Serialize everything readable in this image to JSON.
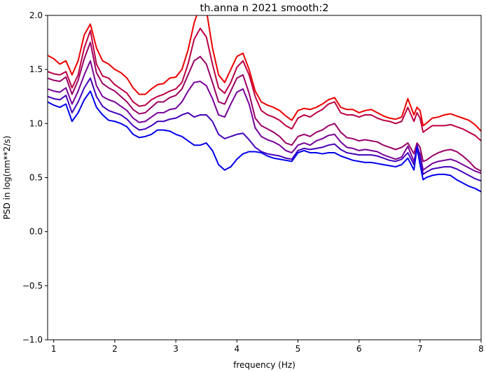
{
  "chart_data": {
    "type": "line",
    "title": "th.anna n 2021 smooth:2",
    "xlabel": "frequency (Hz)",
    "ylabel": "PSD in log(nm**2/s)",
    "xlim": [
      0.9,
      8.0
    ],
    "ylim": [
      -1.0,
      2.0
    ],
    "grid": false,
    "xticks": [
      1,
      2,
      3,
      4,
      5,
      6,
      7,
      8
    ],
    "xtick_labels": [
      "1",
      "2",
      "3",
      "4",
      "5",
      "6",
      "7",
      "8"
    ],
    "yticks": [
      -1.0,
      -0.5,
      0.0,
      0.5,
      1.0,
      1.5,
      2.0
    ],
    "ytick_labels": [
      "−1.0",
      "−0.5",
      "0.0",
      "0.5",
      "1.0",
      "1.5",
      "2.0"
    ],
    "x": [
      0.9,
      1.0,
      1.1,
      1.2,
      1.3,
      1.4,
      1.5,
      1.6,
      1.7,
      1.8,
      1.9,
      2.0,
      2.1,
      2.2,
      2.3,
      2.4,
      2.5,
      2.6,
      2.7,
      2.8,
      2.9,
      3.0,
      3.1,
      3.2,
      3.3,
      3.4,
      3.5,
      3.6,
      3.7,
      3.8,
      3.9,
      4.0,
      4.1,
      4.2,
      4.3,
      4.4,
      4.5,
      4.6,
      4.7,
      4.8,
      4.9,
      5.0,
      5.1,
      5.2,
      5.3,
      5.4,
      5.5,
      5.6,
      5.7,
      5.8,
      5.9,
      6.0,
      6.1,
      6.2,
      6.3,
      6.4,
      6.5,
      6.6,
      6.7,
      6.8,
      6.9,
      6.95,
      7.0,
      7.05,
      7.1,
      7.2,
      7.3,
      7.4,
      7.5,
      7.6,
      7.7,
      7.8,
      7.9,
      8.0
    ],
    "series": [
      {
        "color": "#ee0000",
        "values": [
          1.63,
          1.6,
          1.55,
          1.58,
          1.45,
          1.58,
          1.82,
          1.92,
          1.7,
          1.58,
          1.55,
          1.5,
          1.47,
          1.42,
          1.33,
          1.27,
          1.27,
          1.32,
          1.36,
          1.37,
          1.42,
          1.43,
          1.5,
          1.68,
          1.93,
          2.1,
          2.05,
          1.7,
          1.45,
          1.38,
          1.5,
          1.62,
          1.65,
          1.5,
          1.3,
          1.2,
          1.17,
          1.15,
          1.12,
          1.07,
          1.03,
          1.12,
          1.14,
          1.13,
          1.15,
          1.18,
          1.22,
          1.24,
          1.15,
          1.13,
          1.13,
          1.1,
          1.12,
          1.13,
          1.1,
          1.07,
          1.05,
          1.04,
          1.06,
          1.23,
          1.08,
          1.15,
          1.12,
          0.98,
          1.0,
          1.05,
          1.06,
          1.08,
          1.09,
          1.07,
          1.05,
          1.03,
          0.99,
          0.93
        ]
      },
      {
        "color": "#bb0044",
        "values": [
          1.48,
          1.46,
          1.45,
          1.48,
          1.33,
          1.45,
          1.7,
          1.86,
          1.55,
          1.44,
          1.42,
          1.36,
          1.32,
          1.28,
          1.2,
          1.16,
          1.17,
          1.22,
          1.25,
          1.27,
          1.3,
          1.32,
          1.38,
          1.55,
          1.78,
          1.88,
          1.8,
          1.55,
          1.33,
          1.28,
          1.38,
          1.52,
          1.58,
          1.45,
          1.25,
          1.12,
          1.08,
          1.06,
          1.03,
          0.98,
          0.95,
          1.05,
          1.08,
          1.06,
          1.1,
          1.13,
          1.18,
          1.2,
          1.1,
          1.08,
          1.08,
          1.06,
          1.08,
          1.08,
          1.05,
          1.03,
          1.02,
          1.0,
          1.02,
          1.15,
          1.02,
          1.1,
          1.05,
          0.92,
          0.94,
          0.98,
          0.98,
          0.98,
          0.99,
          0.97,
          0.95,
          0.92,
          0.89,
          0.84
        ]
      },
      {
        "color": "#990066",
        "values": [
          1.42,
          1.4,
          1.39,
          1.43,
          1.27,
          1.4,
          1.6,
          1.75,
          1.47,
          1.37,
          1.33,
          1.3,
          1.25,
          1.2,
          1.13,
          1.09,
          1.1,
          1.15,
          1.2,
          1.2,
          1.24,
          1.26,
          1.32,
          1.45,
          1.58,
          1.62,
          1.55,
          1.38,
          1.2,
          1.18,
          1.3,
          1.42,
          1.45,
          1.28,
          1.05,
          0.98,
          0.95,
          0.92,
          0.88,
          0.82,
          0.8,
          0.88,
          0.9,
          0.88,
          0.92,
          0.94,
          0.98,
          1.0,
          0.92,
          0.87,
          0.86,
          0.84,
          0.85,
          0.84,
          0.83,
          0.8,
          0.78,
          0.76,
          0.78,
          0.82,
          0.72,
          0.82,
          0.78,
          0.65,
          0.66,
          0.7,
          0.73,
          0.75,
          0.76,
          0.74,
          0.7,
          0.65,
          0.59,
          0.56
        ]
      },
      {
        "color": "#770099",
        "values": [
          1.32,
          1.3,
          1.29,
          1.33,
          1.18,
          1.3,
          1.45,
          1.58,
          1.35,
          1.25,
          1.22,
          1.2,
          1.16,
          1.12,
          1.05,
          1.01,
          1.02,
          1.06,
          1.1,
          1.1,
          1.13,
          1.14,
          1.2,
          1.3,
          1.38,
          1.39,
          1.35,
          1.23,
          1.08,
          1.06,
          1.18,
          1.29,
          1.32,
          1.18,
          0.96,
          0.88,
          0.85,
          0.83,
          0.8,
          0.75,
          0.73,
          0.8,
          0.82,
          0.8,
          0.84,
          0.86,
          0.89,
          0.9,
          0.83,
          0.78,
          0.77,
          0.75,
          0.76,
          0.75,
          0.74,
          0.71,
          0.69,
          0.67,
          0.69,
          0.79,
          0.65,
          0.77,
          0.72,
          0.57,
          0.59,
          0.63,
          0.65,
          0.66,
          0.67,
          0.65,
          0.62,
          0.59,
          0.56,
          0.54
        ]
      },
      {
        "color": "#4400bb",
        "values": [
          1.25,
          1.23,
          1.22,
          1.26,
          1.1,
          1.2,
          1.33,
          1.42,
          1.25,
          1.16,
          1.12,
          1.1,
          1.08,
          1.04,
          0.98,
          0.94,
          0.95,
          0.98,
          1.02,
          1.02,
          1.04,
          1.05,
          1.08,
          1.1,
          1.06,
          1.08,
          1.08,
          1.02,
          0.9,
          0.86,
          0.88,
          0.9,
          0.91,
          0.85,
          0.78,
          0.74,
          0.72,
          0.71,
          0.7,
          0.68,
          0.67,
          0.75,
          0.77,
          0.76,
          0.77,
          0.78,
          0.8,
          0.81,
          0.76,
          0.73,
          0.72,
          0.71,
          0.71,
          0.71,
          0.7,
          0.68,
          0.66,
          0.65,
          0.67,
          0.73,
          0.62,
          0.8,
          0.7,
          0.53,
          0.55,
          0.58,
          0.59,
          0.6,
          0.6,
          0.58,
          0.55,
          0.52,
          0.49,
          0.47
        ]
      },
      {
        "color": "#0000ee",
        "values": [
          1.2,
          1.17,
          1.15,
          1.18,
          1.02,
          1.1,
          1.22,
          1.3,
          1.15,
          1.08,
          1.03,
          1.02,
          1.0,
          0.97,
          0.9,
          0.87,
          0.88,
          0.9,
          0.94,
          0.94,
          0.93,
          0.9,
          0.88,
          0.84,
          0.8,
          0.8,
          0.82,
          0.75,
          0.62,
          0.57,
          0.6,
          0.67,
          0.72,
          0.74,
          0.74,
          0.73,
          0.7,
          0.68,
          0.67,
          0.66,
          0.65,
          0.73,
          0.75,
          0.73,
          0.73,
          0.72,
          0.73,
          0.73,
          0.7,
          0.68,
          0.66,
          0.65,
          0.64,
          0.64,
          0.63,
          0.62,
          0.61,
          0.6,
          0.62,
          0.68,
          0.57,
          0.78,
          0.62,
          0.48,
          0.5,
          0.52,
          0.53,
          0.53,
          0.52,
          0.48,
          0.45,
          0.42,
          0.4,
          0.37
        ]
      }
    ]
  }
}
